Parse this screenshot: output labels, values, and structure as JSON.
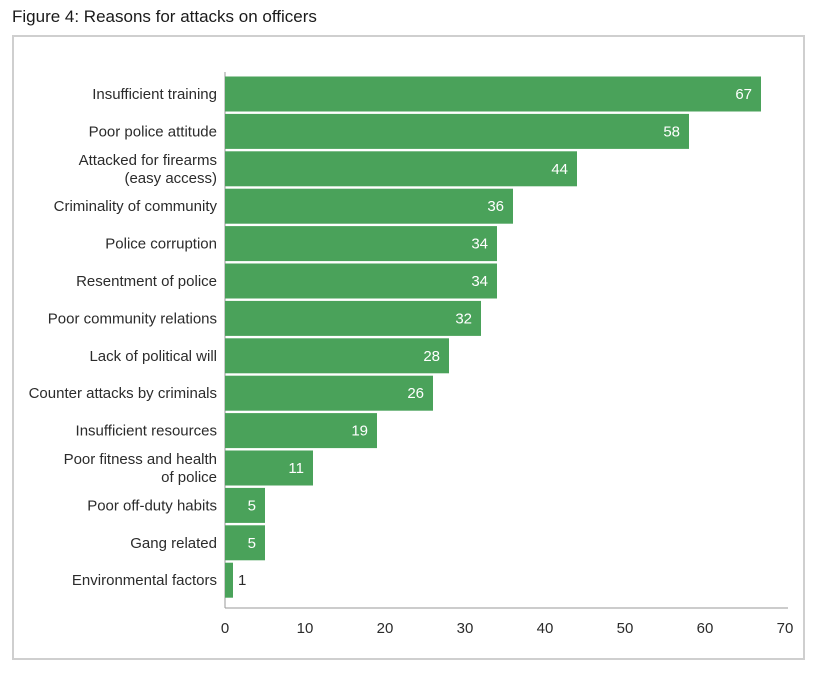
{
  "figure_title": "Figure 4: Reasons for attacks on officers",
  "colors": {
    "bar": "#4aa25a",
    "axis": "#9a9a9a",
    "frame": "#cfcfcf"
  },
  "chart_data": {
    "type": "bar",
    "orientation": "horizontal",
    "title": "Figure 4: Reasons for attacks on officers",
    "categories": [
      "Insufficient training",
      "Poor police attitude",
      "Attacked for firearms\n(easy access)",
      "Criminality of community",
      "Police corruption",
      "Resentment of police",
      "Poor community relations",
      "Lack of political will",
      "Counter attacks by criminals",
      "Insufficient resources",
      "Poor fitness and health\nof police",
      "Poor off-duty habits",
      "Gang related",
      "Environmental factors"
    ],
    "values": [
      67,
      58,
      44,
      36,
      34,
      34,
      32,
      28,
      26,
      19,
      11,
      5,
      5,
      1
    ],
    "xlim": [
      0,
      70
    ],
    "xticks": [
      0,
      10,
      20,
      30,
      40,
      50,
      60,
      70
    ],
    "xlabel": "",
    "ylabel": "",
    "grid": false,
    "legend": "none"
  }
}
